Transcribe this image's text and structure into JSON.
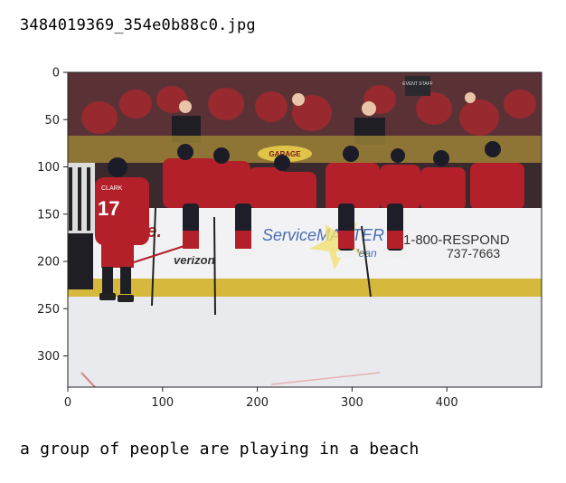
{
  "header": {
    "filename": "3484019369_354e0b88c0.jpg"
  },
  "figure": {
    "x_ticks": [
      "0",
      "100",
      "200",
      "300",
      "400"
    ],
    "y_ticks": [
      "0",
      "50",
      "100",
      "150",
      "200",
      "250",
      "300"
    ],
    "x_range": [
      0,
      500
    ],
    "y_range": [
      0,
      333
    ]
  },
  "photo": {
    "board_texts": {
      "service_master": "ServiceMASTER",
      "clean": "clean",
      "phone": "1-800-RESPOND",
      "phone2": "737-7663",
      "verizon": "verizon",
      "team_tail": "ne.",
      "jersey_number": "17",
      "jersey_name": "CLARK",
      "event_staff": "EVENT STAFF",
      "garage": "GARAGE"
    },
    "colors": {
      "jersey_red": "#b3202a",
      "ice": "#e9eaee",
      "dasher_yellow": "#d6b83c"
    }
  },
  "caption": {
    "text": "a group of people are playing in a beach"
  }
}
